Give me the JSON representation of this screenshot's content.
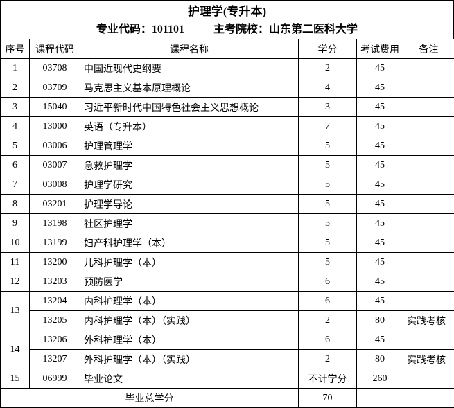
{
  "header": {
    "title": "护理学(专升本)",
    "major_code_text": "专业代码：101101",
    "host_school_text": "主考院校：山东第二医科大学"
  },
  "table": {
    "columns": [
      "序号",
      "课程代码",
      "课程名称",
      "学分",
      "考试费用",
      "备注"
    ],
    "rows": [
      {
        "no": "1",
        "code": "03708",
        "name": "中国近现代史纲要",
        "credit": "2",
        "fee": "45",
        "note": ""
      },
      {
        "no": "2",
        "code": "03709",
        "name": "马克思主义基本原理概论",
        "credit": "4",
        "fee": "45",
        "note": ""
      },
      {
        "no": "3",
        "code": "15040",
        "name": "习近平新时代中国特色社会主义思想概论",
        "credit": "3",
        "fee": "45",
        "note": ""
      },
      {
        "no": "4",
        "code": "13000",
        "name": "英语（专升本）",
        "credit": "7",
        "fee": "45",
        "note": ""
      },
      {
        "no": "5",
        "code": "03006",
        "name": "护理管理学",
        "credit": "5",
        "fee": "45",
        "note": ""
      },
      {
        "no": "6",
        "code": "03007",
        "name": "急救护理学",
        "credit": "5",
        "fee": "45",
        "note": ""
      },
      {
        "no": "7",
        "code": "03008",
        "name": "护理学研究",
        "credit": "5",
        "fee": "45",
        "note": ""
      },
      {
        "no": "8",
        "code": "03201",
        "name": "护理学导论",
        "credit": "5",
        "fee": "45",
        "note": ""
      },
      {
        "no": "9",
        "code": "13198",
        "name": "社区护理学",
        "credit": "5",
        "fee": "45",
        "note": ""
      },
      {
        "no": "10",
        "code": "13199",
        "name": "妇产科护理学（本）",
        "credit": "5",
        "fee": "45",
        "note": ""
      },
      {
        "no": "11",
        "code": "13200",
        "name": "儿科护理学（本）",
        "credit": "5",
        "fee": "45",
        "note": ""
      },
      {
        "no": "12",
        "code": "13203",
        "name": "预防医学",
        "credit": "6",
        "fee": "45",
        "note": ""
      },
      {
        "no": "13",
        "code": "13204",
        "name": "内科护理学（本）",
        "credit": "6",
        "fee": "45",
        "note": ""
      },
      {
        "no": "",
        "code": "13205",
        "name": "内科护理学（本）（实践）",
        "credit": "2",
        "fee": "80",
        "note": "实践考核"
      },
      {
        "no": "14",
        "code": "13206",
        "name": "外科护理学（本）",
        "credit": "6",
        "fee": "45",
        "note": ""
      },
      {
        "no": "",
        "code": "13207",
        "name": "外科护理学（本）（实践）",
        "credit": "2",
        "fee": "80",
        "note": "实践考核"
      },
      {
        "no": "15",
        "code": "06999",
        "name": "毕业论文",
        "credit": "不计学分",
        "fee": "260",
        "note": ""
      }
    ],
    "footer": {
      "label": "毕业总学分",
      "credit": "70",
      "fee": "",
      "note": ""
    }
  },
  "colors": {
    "background": "#ffffff",
    "text": "#000000",
    "border": "#000000"
  }
}
